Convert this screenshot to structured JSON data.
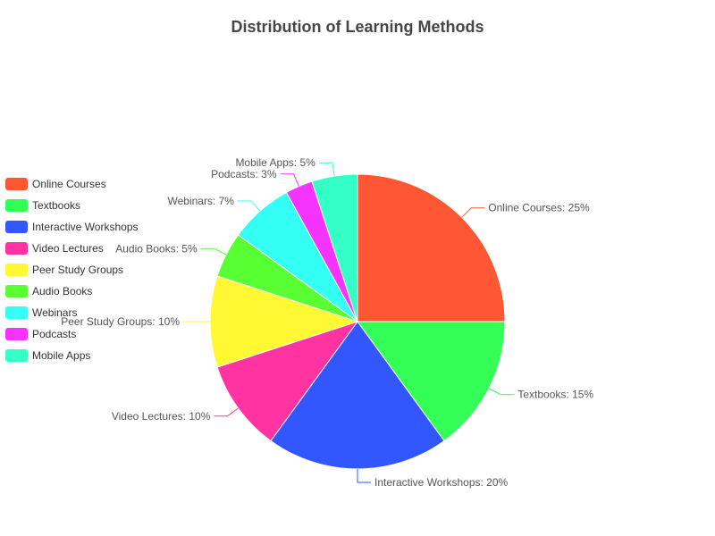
{
  "chart_data": {
    "type": "pie",
    "title": "Distribution of Learning Methods",
    "slices": [
      {
        "label": "Online Courses",
        "value": 25,
        "color": "#FF5733"
      },
      {
        "label": "Textbooks",
        "value": 15,
        "color": "#33FF57"
      },
      {
        "label": "Interactive Workshops",
        "value": 20,
        "color": "#3357FF"
      },
      {
        "label": "Video Lectures",
        "value": 10,
        "color": "#FF33A1"
      },
      {
        "label": "Peer Study Groups",
        "value": 10,
        "color": "#FFF833"
      },
      {
        "label": "Audio Books",
        "value": 5,
        "color": "#57FF33"
      },
      {
        "label": "Webinars",
        "value": 7,
        "color": "#33FFF5"
      },
      {
        "label": "Podcasts",
        "value": 3,
        "color": "#F533FF"
      },
      {
        "label": "Mobile Apps",
        "value": 5,
        "color": "#33FFC7"
      }
    ],
    "slice_labels": [
      "Online Courses: 25%",
      "Textbooks: 15%",
      "Interactive Workshops: 20%",
      "Video Lectures: 10%",
      "Peer Study Groups: 10%",
      "Audio Books: 5%",
      "Webinars: 7%",
      "Podcasts: 3%",
      "Mobile Apps: 5%"
    ],
    "legend_position": "left",
    "start_angle": "top, clockwise"
  }
}
